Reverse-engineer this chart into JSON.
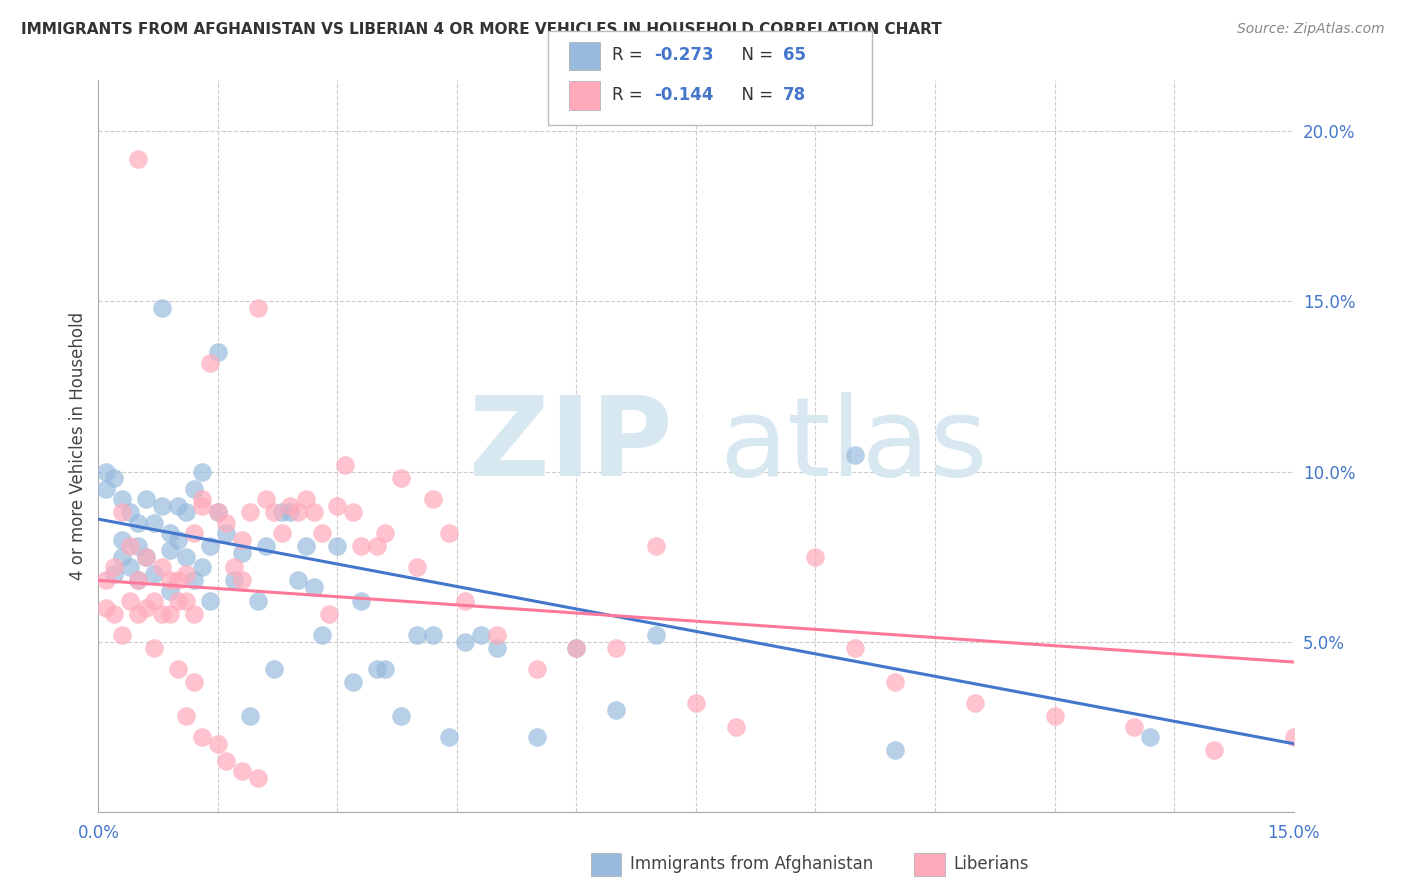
{
  "title": "IMMIGRANTS FROM AFGHANISTAN VS LIBERIAN 4 OR MORE VEHICLES IN HOUSEHOLD CORRELATION CHART",
  "source": "Source: ZipAtlas.com",
  "ylabel": "4 or more Vehicles in Household",
  "ylabel_right_ticks": [
    "20.0%",
    "15.0%",
    "10.0%",
    "5.0%"
  ],
  "ylabel_right_vals": [
    0.2,
    0.15,
    0.1,
    0.05
  ],
  "legend_label1": "Immigrants from Afghanistan",
  "legend_label2": "Liberians",
  "color_blue": "#99BBDD",
  "color_pink": "#FFAABB",
  "color_line_blue": "#4477CC",
  "color_line_pink": "#FF7799",
  "watermark_zip": "ZIP",
  "watermark_atlas": "atlas",
  "x_min": 0.0,
  "x_max": 0.15,
  "y_min": 0.0,
  "y_max": 0.215,
  "afg_line_x0": 0.0,
  "afg_line_y0": 0.086,
  "afg_line_x1": 0.15,
  "afg_line_y1": 0.02,
  "lib_line_x0": 0.0,
  "lib_line_y0": 0.068,
  "lib_line_x1": 0.15,
  "lib_line_y1": 0.044,
  "afg_x": [
    0.001,
    0.001,
    0.002,
    0.002,
    0.003,
    0.003,
    0.003,
    0.004,
    0.004,
    0.005,
    0.005,
    0.005,
    0.006,
    0.006,
    0.007,
    0.007,
    0.008,
    0.008,
    0.009,
    0.009,
    0.009,
    0.01,
    0.01,
    0.011,
    0.011,
    0.012,
    0.012,
    0.013,
    0.013,
    0.014,
    0.014,
    0.015,
    0.015,
    0.016,
    0.017,
    0.018,
    0.019,
    0.02,
    0.021,
    0.022,
    0.023,
    0.024,
    0.025,
    0.026,
    0.027,
    0.028,
    0.03,
    0.032,
    0.033,
    0.035,
    0.036,
    0.038,
    0.04,
    0.042,
    0.044,
    0.046,
    0.048,
    0.05,
    0.055,
    0.06,
    0.065,
    0.07,
    0.095,
    0.1,
    0.132
  ],
  "afg_y": [
    0.095,
    0.1,
    0.098,
    0.07,
    0.092,
    0.08,
    0.075,
    0.088,
    0.072,
    0.085,
    0.078,
    0.068,
    0.092,
    0.075,
    0.085,
    0.07,
    0.148,
    0.09,
    0.082,
    0.077,
    0.065,
    0.08,
    0.09,
    0.088,
    0.075,
    0.095,
    0.068,
    0.1,
    0.072,
    0.062,
    0.078,
    0.135,
    0.088,
    0.082,
    0.068,
    0.076,
    0.028,
    0.062,
    0.078,
    0.042,
    0.088,
    0.088,
    0.068,
    0.078,
    0.066,
    0.052,
    0.078,
    0.038,
    0.062,
    0.042,
    0.042,
    0.028,
    0.052,
    0.052,
    0.022,
    0.05,
    0.052,
    0.048,
    0.022,
    0.048,
    0.03,
    0.052,
    0.105,
    0.018,
    0.022
  ],
  "lib_x": [
    0.001,
    0.001,
    0.002,
    0.002,
    0.003,
    0.003,
    0.004,
    0.004,
    0.005,
    0.005,
    0.005,
    0.006,
    0.006,
    0.007,
    0.007,
    0.008,
    0.008,
    0.009,
    0.009,
    0.01,
    0.01,
    0.011,
    0.011,
    0.012,
    0.012,
    0.013,
    0.013,
    0.014,
    0.015,
    0.016,
    0.017,
    0.018,
    0.018,
    0.019,
    0.02,
    0.021,
    0.022,
    0.023,
    0.024,
    0.025,
    0.026,
    0.027,
    0.028,
    0.029,
    0.03,
    0.031,
    0.032,
    0.033,
    0.035,
    0.036,
    0.038,
    0.04,
    0.042,
    0.044,
    0.046,
    0.05,
    0.055,
    0.06,
    0.065,
    0.07,
    0.075,
    0.08,
    0.09,
    0.095,
    0.1,
    0.11,
    0.12,
    0.13,
    0.14,
    0.15,
    0.01,
    0.011,
    0.012,
    0.013,
    0.015,
    0.016,
    0.018,
    0.02
  ],
  "lib_y": [
    0.068,
    0.06,
    0.072,
    0.058,
    0.088,
    0.052,
    0.078,
    0.062,
    0.068,
    0.058,
    0.192,
    0.075,
    0.06,
    0.062,
    0.048,
    0.072,
    0.058,
    0.068,
    0.058,
    0.068,
    0.062,
    0.062,
    0.07,
    0.082,
    0.058,
    0.092,
    0.09,
    0.132,
    0.088,
    0.085,
    0.072,
    0.08,
    0.068,
    0.088,
    0.148,
    0.092,
    0.088,
    0.082,
    0.09,
    0.088,
    0.092,
    0.088,
    0.082,
    0.058,
    0.09,
    0.102,
    0.088,
    0.078,
    0.078,
    0.082,
    0.098,
    0.072,
    0.092,
    0.082,
    0.062,
    0.052,
    0.042,
    0.048,
    0.048,
    0.078,
    0.032,
    0.025,
    0.075,
    0.048,
    0.038,
    0.032,
    0.028,
    0.025,
    0.018,
    0.022,
    0.042,
    0.028,
    0.038,
    0.022,
    0.02,
    0.015,
    0.012,
    0.01
  ]
}
